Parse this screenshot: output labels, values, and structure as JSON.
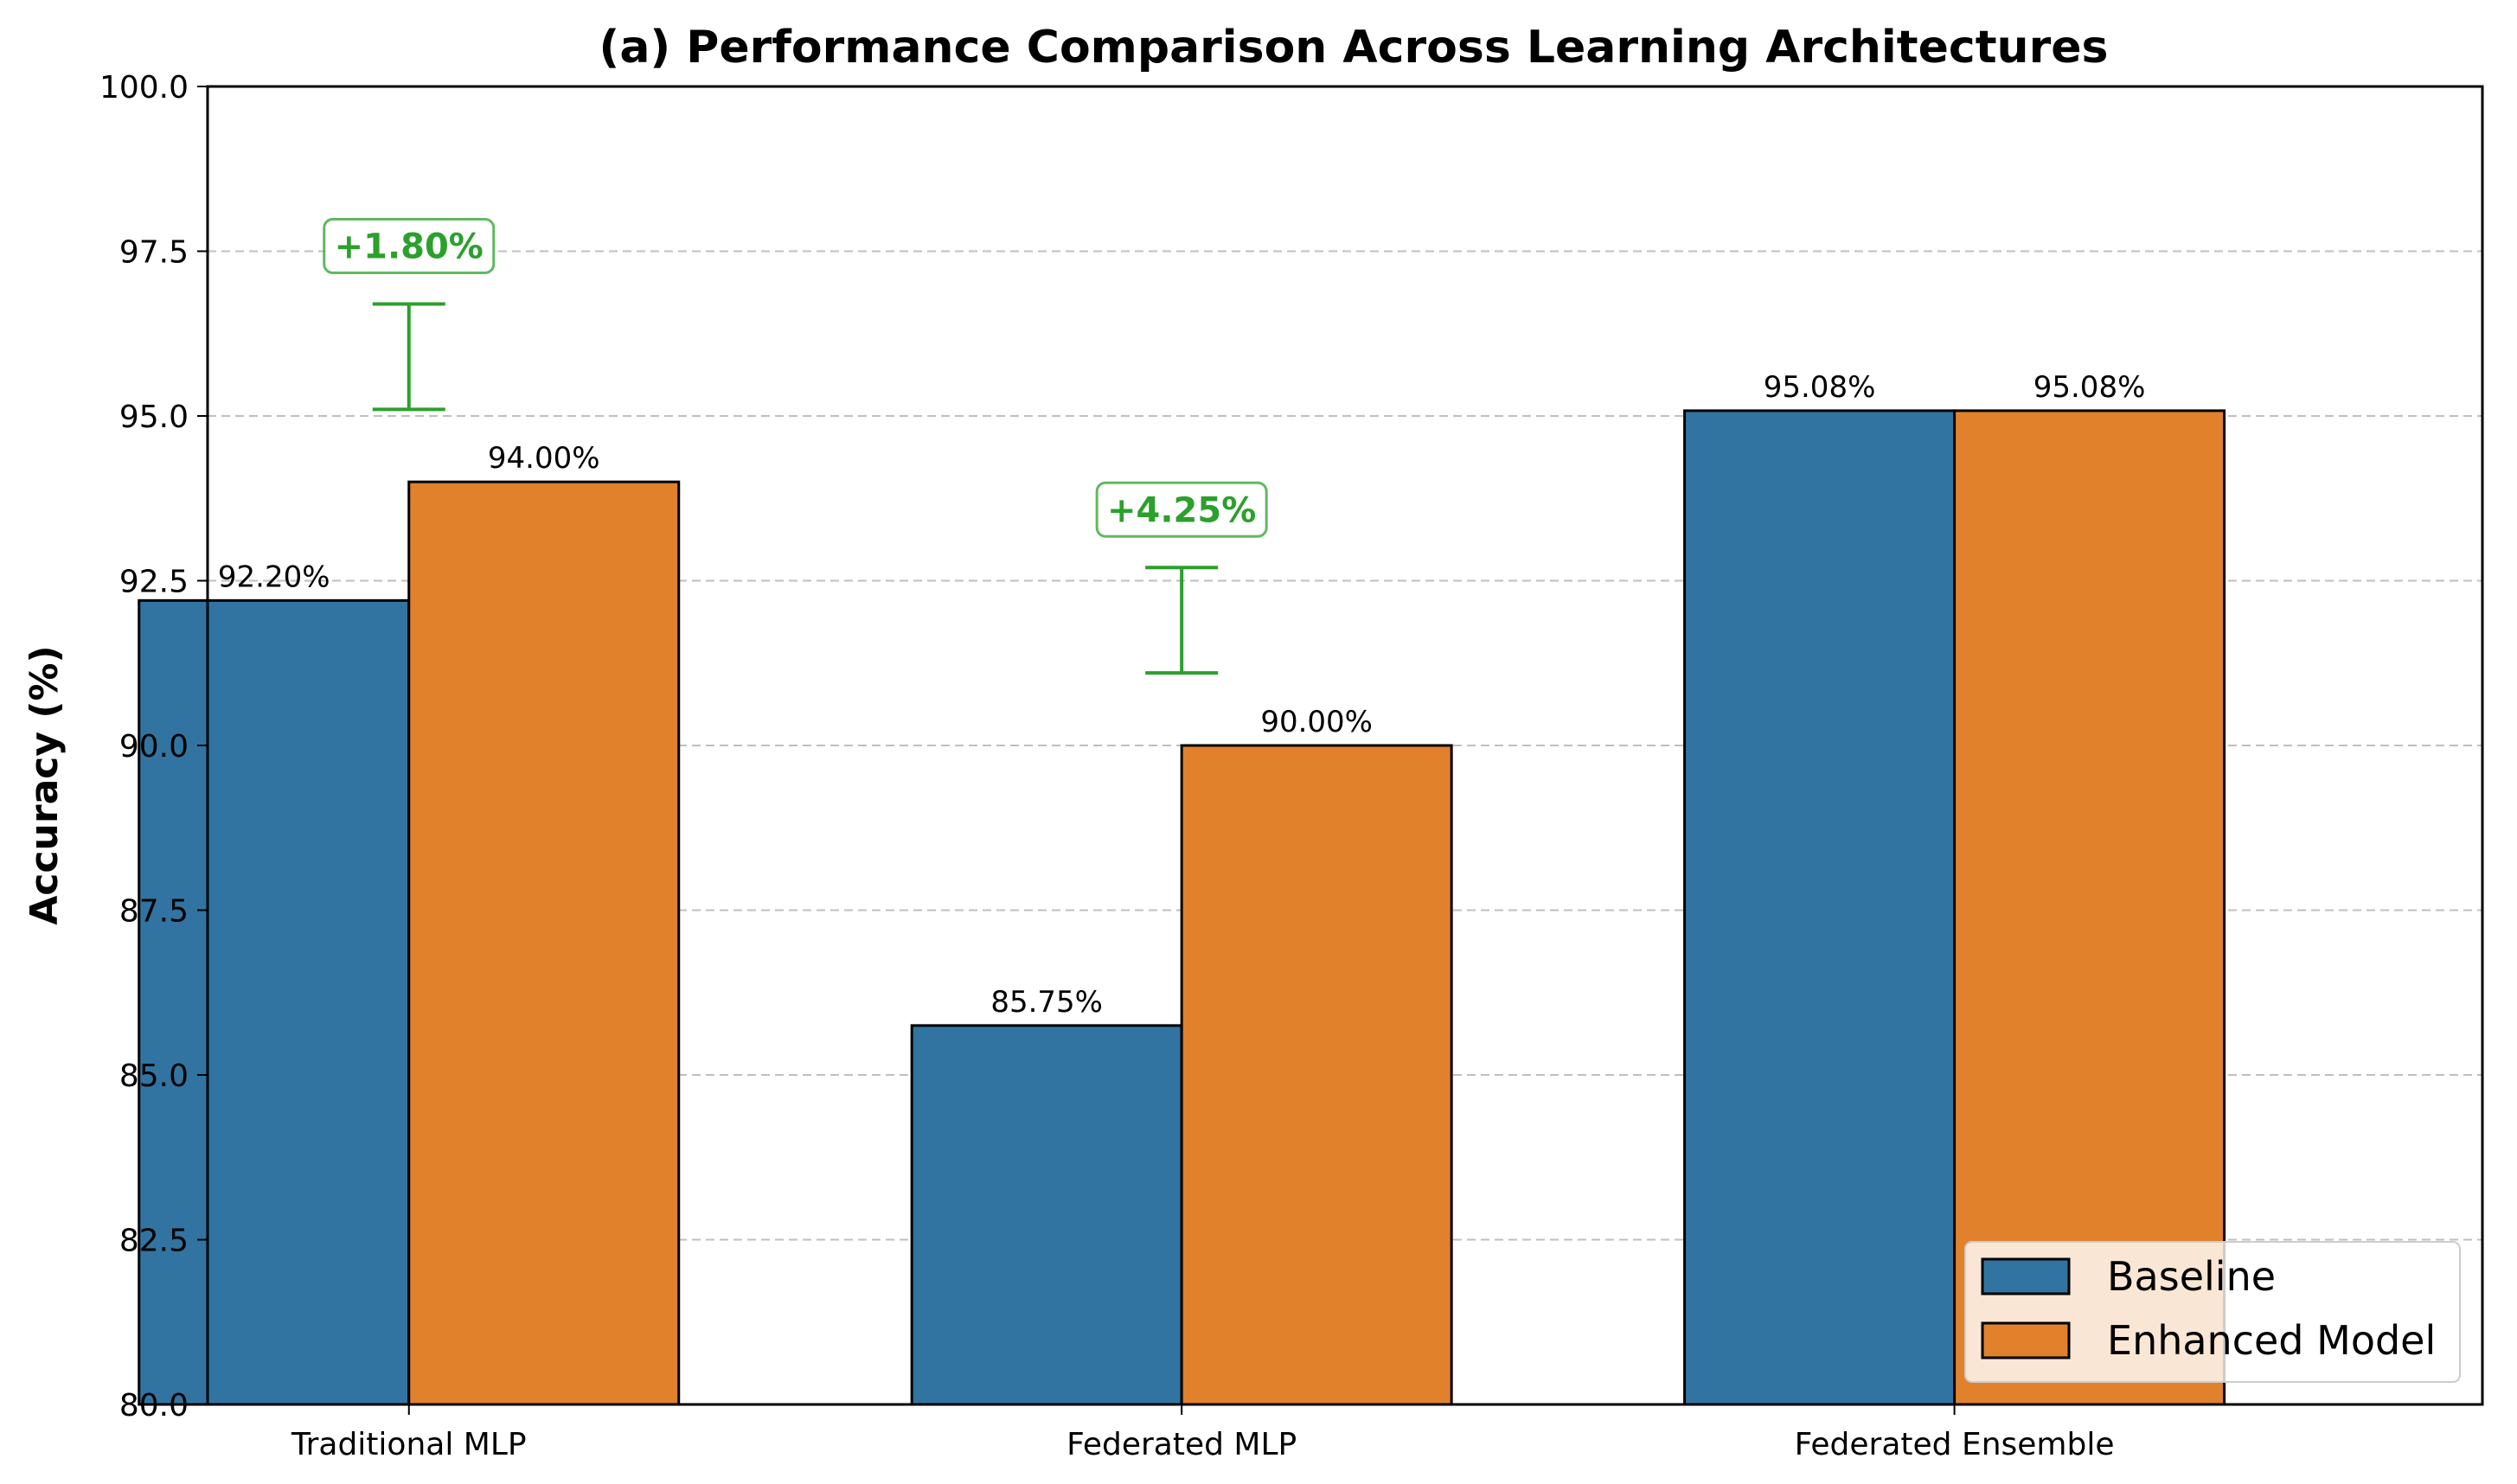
{
  "chart_data": {
    "type": "bar",
    "title": "(a) Performance Comparison Across Learning Architectures",
    "xlabel": "",
    "ylabel": "Accuracy (%)",
    "ylim": [
      80.0,
      100.0
    ],
    "yticks": [
      "80.0",
      "82.5",
      "85.0",
      "87.5",
      "90.0",
      "92.5",
      "95.0",
      "97.5",
      "100.0"
    ],
    "grid": "y-dashed",
    "legend_position": "bottom-right",
    "categories": [
      "Traditional MLP",
      "Federated MLP",
      "Federated Ensemble"
    ],
    "series": [
      {
        "name": "Baseline",
        "color": "#3274a1",
        "values": [
          92.2,
          85.75,
          95.08
        ],
        "labels": [
          "92.20%",
          "85.75%",
          "95.08%"
        ]
      },
      {
        "name": "Enhanced Model",
        "color": "#e1812c",
        "values": [
          94.0,
          90.0,
          95.08
        ],
        "labels": [
          "94.00%",
          "90.00%",
          "95.08%"
        ]
      }
    ],
    "annotations": [
      {
        "category": "Traditional MLP",
        "text": "+1.80%",
        "color": "#2ca02c",
        "range": [
          95.1,
          96.7
        ]
      },
      {
        "category": "Federated MLP",
        "text": "+4.25%",
        "color": "#2ca02c",
        "range": [
          91.1,
          92.7
        ]
      }
    ]
  }
}
